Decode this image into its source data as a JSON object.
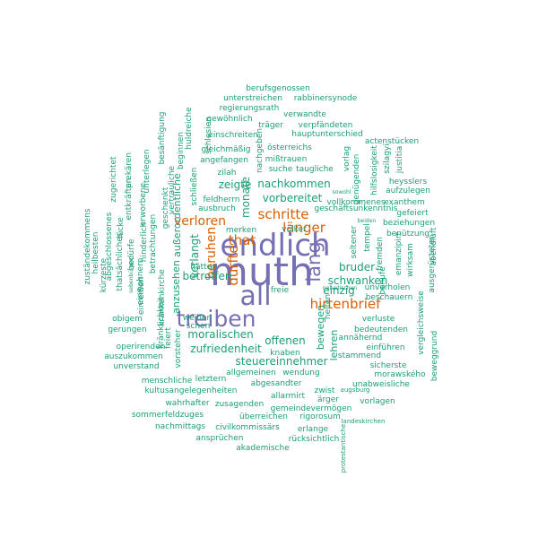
{
  "colors": {
    "purple": "#7570b3",
    "orange": "#d95f02",
    "teal": "#1b9e77"
  },
  "words": [
    {
      "text": "muth",
      "color": "purple",
      "weight": 10
    },
    {
      "text": "endlich",
      "color": "purple",
      "weight": 9
    },
    {
      "text": "all",
      "color": "purple",
      "weight": 8
    },
    {
      "text": "treiben",
      "color": "purple",
      "weight": 7
    },
    {
      "text": "lang",
      "color": "purple",
      "weight": 6
    },
    {
      "text": "hirtenbrief",
      "color": "orange",
      "weight": 4
    },
    {
      "text": "schritte",
      "color": "orange",
      "weight": 4
    },
    {
      "text": "dürfte",
      "color": "orange",
      "weight": 4
    },
    {
      "text": "verloren",
      "color": "orange",
      "weight": 4
    },
    {
      "text": "beruhen",
      "color": "orange",
      "weight": 4
    },
    {
      "text": "länger",
      "color": "orange",
      "weight": 4
    },
    {
      "text": "that",
      "color": "orange",
      "weight": 4
    },
    {
      "text": "berufsgenossen",
      "color": "teal",
      "weight": 1
    },
    {
      "text": "unterstreichen",
      "color": "teal",
      "weight": 1
    },
    {
      "text": "rabbinersynode",
      "color": "teal",
      "weight": 1
    },
    {
      "text": "regierungsrath",
      "color": "teal",
      "weight": 1
    },
    {
      "text": "verwandte",
      "color": "teal",
      "weight": 1
    },
    {
      "text": "gewöhnlich",
      "color": "teal",
      "weight": 1
    },
    {
      "text": "träger",
      "color": "teal",
      "weight": 1
    },
    {
      "text": "verpfändeten",
      "color": "teal",
      "weight": 1
    },
    {
      "text": "einschreiten",
      "color": "teal",
      "weight": 1
    },
    {
      "text": "hauptunterschied",
      "color": "teal",
      "weight": 1
    },
    {
      "text": "actenstücken",
      "color": "teal",
      "weight": 1
    },
    {
      "text": "gleichmäßig",
      "color": "teal",
      "weight": 1
    },
    {
      "text": "österreichs",
      "color": "teal",
      "weight": 1
    },
    {
      "text": "mißtrauen",
      "color": "teal",
      "weight": 1
    },
    {
      "text": "angefangen",
      "color": "teal",
      "weight": 1
    },
    {
      "text": "suche",
      "color": "teal",
      "weight": 1
    },
    {
      "text": "taugliche",
      "color": "teal",
      "weight": 1
    },
    {
      "text": "zilah",
      "color": "teal",
      "weight": 1
    },
    {
      "text": "zeigte",
      "color": "teal",
      "weight": 2
    },
    {
      "text": "monate",
      "color": "teal",
      "weight": 2
    },
    {
      "text": "nachkommen",
      "color": "teal",
      "weight": 2
    },
    {
      "text": "heysslers",
      "color": "teal",
      "weight": 1
    },
    {
      "text": "aufzulegen",
      "color": "teal",
      "weight": 1
    },
    {
      "text": "vorbereitet",
      "color": "teal",
      "weight": 2
    },
    {
      "text": "feldherrn",
      "color": "teal",
      "weight": 1
    },
    {
      "text": "vollkommenes",
      "color": "teal",
      "weight": 1
    },
    {
      "text": "exanthem",
      "color": "teal",
      "weight": 1
    },
    {
      "text": "geschäftsunkenntnis",
      "color": "teal",
      "weight": 1
    },
    {
      "text": "gefeiert",
      "color": "teal",
      "weight": 1
    },
    {
      "text": "ausbruch",
      "color": "teal",
      "weight": 1
    },
    {
      "text": "beziehungen",
      "color": "teal",
      "weight": 1
    },
    {
      "text": "benützung",
      "color": "teal",
      "weight": 1
    },
    {
      "text": "merken",
      "color": "teal",
      "weight": 1
    },
    {
      "text": "völker",
      "color": "teal",
      "weight": 1
    },
    {
      "text": "verlangt",
      "color": "teal",
      "weight": 2
    },
    {
      "text": "bruder",
      "color": "teal",
      "weight": 2
    },
    {
      "text": "schwanken",
      "color": "teal",
      "weight": 2
    },
    {
      "text": "einzig",
      "color": "teal",
      "weight": 2
    },
    {
      "text": "unverholen",
      "color": "teal",
      "weight": 1
    },
    {
      "text": "betroffen",
      "color": "teal",
      "weight": 2
    },
    {
      "text": "hätten",
      "color": "teal",
      "weight": 1
    },
    {
      "text": "freie",
      "color": "teal",
      "weight": 1
    },
    {
      "text": "beschauern",
      "color": "teal",
      "weight": 1
    },
    {
      "text": "weihen",
      "color": "teal",
      "weight": 1
    },
    {
      "text": "schen",
      "color": "teal",
      "weight": 1
    },
    {
      "text": "moralischen",
      "color": "teal",
      "weight": 2
    },
    {
      "text": "offenen",
      "color": "teal",
      "weight": 2
    },
    {
      "text": "verluste",
      "color": "teal",
      "weight": 1
    },
    {
      "text": "bedeutenden",
      "color": "teal",
      "weight": 1
    },
    {
      "text": "annähernd",
      "color": "teal",
      "weight": 1
    },
    {
      "text": "zufriedenheit",
      "color": "teal",
      "weight": 2
    },
    {
      "text": "knaben",
      "color": "teal",
      "weight": 1
    },
    {
      "text": "stammend",
      "color": "teal",
      "weight": 1
    },
    {
      "text": "einführen",
      "color": "teal",
      "weight": 1
    },
    {
      "text": "steuereinnehmer",
      "color": "teal",
      "weight": 2
    },
    {
      "text": "sicherste",
      "color": "teal",
      "weight": 1
    },
    {
      "text": "allgemeinen",
      "color": "teal",
      "weight": 1
    },
    {
      "text": "wendung",
      "color": "teal",
      "weight": 1
    },
    {
      "text": "morawského",
      "color": "teal",
      "weight": 1
    },
    {
      "text": "letztern",
      "color": "teal",
      "weight": 1
    },
    {
      "text": "abgesandter",
      "color": "teal",
      "weight": 1
    },
    {
      "text": "unabweisliche",
      "color": "teal",
      "weight": 1
    },
    {
      "text": "menschliche",
      "color": "teal",
      "weight": 1
    },
    {
      "text": "kultusangelegenheiten",
      "color": "teal",
      "weight": 1
    },
    {
      "text": "zwist",
      "color": "teal",
      "weight": 1
    },
    {
      "text": "augsburg",
      "color": "teal",
      "weight": 1
    },
    {
      "text": "ärger",
      "color": "teal",
      "weight": 1
    },
    {
      "text": "allarmirt",
      "color": "teal",
      "weight": 1
    },
    {
      "text": "vorlagen",
      "color": "teal",
      "weight": 1
    },
    {
      "text": "wahrhafter",
      "color": "teal",
      "weight": 1
    },
    {
      "text": "zusagenden",
      "color": "teal",
      "weight": 1
    },
    {
      "text": "gemeindevermögen",
      "color": "teal",
      "weight": 1
    },
    {
      "text": "sommerfeldzuges",
      "color": "teal",
      "weight": 1
    },
    {
      "text": "überreichen",
      "color": "teal",
      "weight": 1
    },
    {
      "text": "rigorosum",
      "color": "teal",
      "weight": 1
    },
    {
      "text": "nachmittags",
      "color": "teal",
      "weight": 1
    },
    {
      "text": "civilkommissärs",
      "color": "teal",
      "weight": 1
    },
    {
      "text": "erlange",
      "color": "teal",
      "weight": 1
    },
    {
      "text": "ansprüchen",
      "color": "teal",
      "weight": 1
    },
    {
      "text": "rücksichtlich",
      "color": "teal",
      "weight": 1
    },
    {
      "text": "akademische",
      "color": "teal",
      "weight": 1
    },
    {
      "text": "landeskirchen",
      "color": "teal",
      "weight": 1
    },
    {
      "text": "protestantische",
      "color": "teal",
      "weight": 1
    },
    {
      "text": "anzusehen",
      "color": "teal",
      "weight": 2
    },
    {
      "text": "außerordentliche",
      "color": "teal",
      "weight": 2
    },
    {
      "text": "bewegen",
      "color": "teal",
      "weight": 2
    },
    {
      "text": "lehren",
      "color": "teal",
      "weight": 2
    },
    {
      "text": "nachgeben",
      "color": "teal",
      "weight": 1
    },
    {
      "text": "beginnen",
      "color": "teal",
      "weight": 1
    },
    {
      "text": "geschenkt",
      "color": "teal",
      "weight": 1
    },
    {
      "text": "vertrauliche",
      "color": "teal",
      "weight": 1
    },
    {
      "text": "schließen",
      "color": "teal",
      "weight": 1
    },
    {
      "text": "huldreiche",
      "color": "teal",
      "weight": 1
    },
    {
      "text": "schlesien",
      "color": "teal",
      "weight": 1
    },
    {
      "text": "besänftigung",
      "color": "teal",
      "weight": 1
    },
    {
      "text": "unterlegen",
      "color": "teal",
      "weight": 1
    },
    {
      "text": "erworbene",
      "color": "teal",
      "weight": 1
    },
    {
      "text": "prekären",
      "color": "teal",
      "weight": 1
    },
    {
      "text": "entkräften",
      "color": "teal",
      "weight": 1
    },
    {
      "text": "hinderlich",
      "color": "teal",
      "weight": 1
    },
    {
      "text": "betrachtungen",
      "color": "teal",
      "weight": 1
    },
    {
      "text": "einwohnern",
      "color": "teal",
      "weight": 1
    },
    {
      "text": "zugerichtet",
      "color": "teal",
      "weight": 1
    },
    {
      "text": "bedürfe",
      "color": "teal",
      "weight": 1
    },
    {
      "text": "lücke",
      "color": "teal",
      "weight": 1
    },
    {
      "text": "thatsächliches",
      "color": "teal",
      "weight": 1
    },
    {
      "text": "abgeschlossenes",
      "color": "teal",
      "weight": 1
    },
    {
      "text": "heilbesten",
      "color": "teal",
      "weight": 1
    },
    {
      "text": "kürzeste",
      "color": "teal",
      "weight": 1
    },
    {
      "text": "zuständekommens",
      "color": "teal",
      "weight": 1
    },
    {
      "text": "einreißen",
      "color": "teal",
      "weight": 1
    },
    {
      "text": "krankenkirche",
      "color": "teal",
      "weight": 1
    },
    {
      "text": "gerungen",
      "color": "teal",
      "weight": 1
    },
    {
      "text": "obigem",
      "color": "teal",
      "weight": 1
    },
    {
      "text": "operirenden",
      "color": "teal",
      "weight": 1
    },
    {
      "text": "auszukommen",
      "color": "teal",
      "weight": 1
    },
    {
      "text": "unverstand",
      "color": "teal",
      "weight": 1
    },
    {
      "text": "feiert",
      "color": "teal",
      "weight": 1
    },
    {
      "text": "vorsteher",
      "color": "teal",
      "weight": 1
    },
    {
      "text": "kränklichkeit",
      "color": "teal",
      "weight": 1
    },
    {
      "text": "sebenbürgen",
      "color": "teal",
      "weight": 1
    },
    {
      "text": "hilfslosigkeit",
      "color": "teal",
      "weight": 1
    },
    {
      "text": "szilagyi",
      "color": "teal",
      "weight": 1
    },
    {
      "text": "justitia",
      "color": "teal",
      "weight": 1
    },
    {
      "text": "genügenden",
      "color": "teal",
      "weight": 1
    },
    {
      "text": "vorlag",
      "color": "teal",
      "weight": 1
    },
    {
      "text": "sowohl",
      "color": "teal",
      "weight": 1
    },
    {
      "text": "beiden",
      "color": "teal",
      "weight": 1
    },
    {
      "text": "seltener",
      "color": "teal",
      "weight": 1
    },
    {
      "text": "tempel",
      "color": "teal",
      "weight": 1
    },
    {
      "text": "emanzipirt",
      "color": "teal",
      "weight": 1
    },
    {
      "text": "fremden",
      "color": "teal",
      "weight": 1
    },
    {
      "text": "wirksam",
      "color": "teal",
      "weight": 1
    },
    {
      "text": "abendluft",
      "color": "teal",
      "weight": 1
    },
    {
      "text": "ausgerüsteten",
      "color": "teal",
      "weight": 1
    },
    {
      "text": "behufe",
      "color": "teal",
      "weight": 1
    },
    {
      "text": "vergleichsweise",
      "color": "teal",
      "weight": 1
    },
    {
      "text": "helfen",
      "color": "teal",
      "weight": 1
    },
    {
      "text": "beweggrund",
      "color": "teal",
      "weight": 1
    },
    {
      "text": "nelvetischen",
      "color": "teal",
      "weight": 1
    }
  ]
}
